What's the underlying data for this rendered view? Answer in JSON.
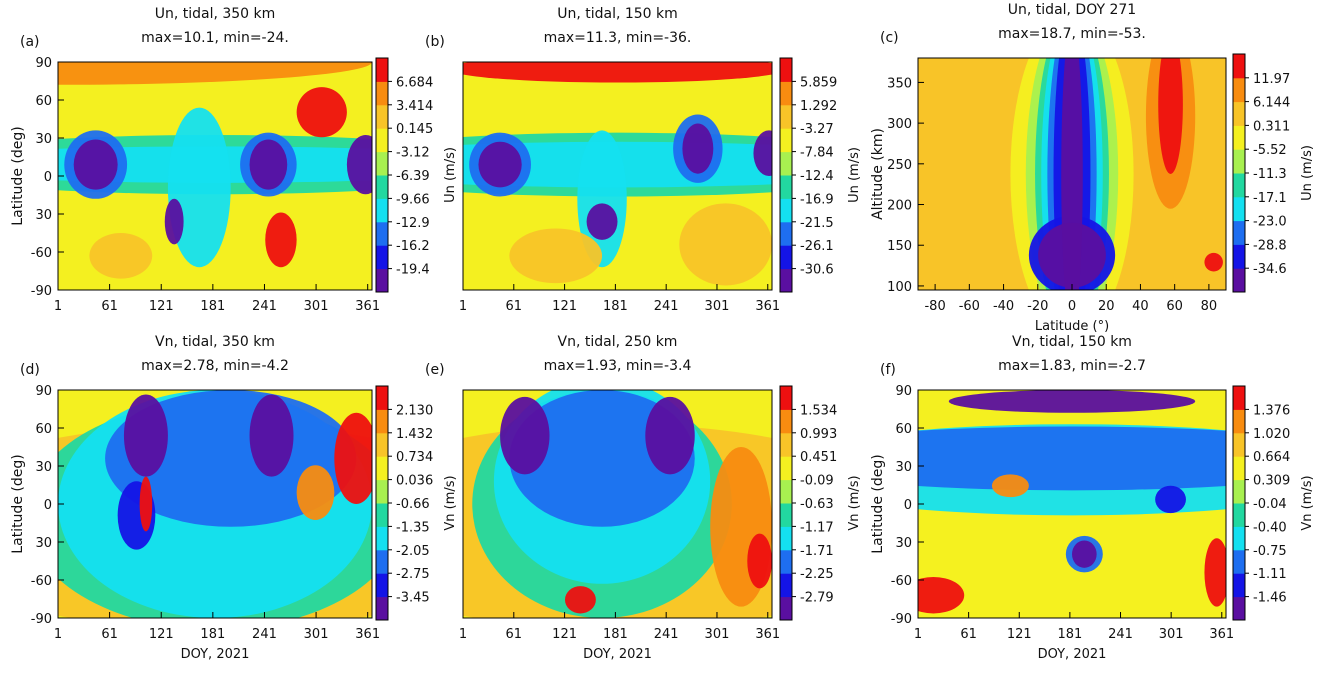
{
  "chart_data": [
    {
      "type": "contour",
      "panel": "(a)",
      "title": "Un, tidal, 350 km",
      "subtitle": "max=10.1,  min=-24.",
      "ylabel": "Latitude (deg)",
      "xlim": [
        1,
        366
      ],
      "xticks": [
        1,
        61,
        121,
        181,
        241,
        301,
        361
      ],
      "ylim": [
        -90,
        90
      ],
      "yticks": [
        -90,
        -60,
        {
          "value": -30,
          "label": "30"
        },
        0,
        30,
        60,
        90
      ],
      "colorbar_label": "Un (m/s)",
      "colorbar_ticks": [
        -19.4,
        -16.2,
        -12.9,
        -9.66,
        -6.39,
        -3.12,
        0.145,
        3.414,
        6.684
      ]
    },
    {
      "type": "contour",
      "panel": "(b)",
      "title": "Un, tidal, 150 km",
      "subtitle": "max=11.3,  min=-36.",
      "xlim": [
        1,
        366
      ],
      "xticks": [
        1,
        61,
        121,
        181,
        241,
        301,
        361
      ],
      "ylim": [
        -90,
        90
      ],
      "colorbar_label": "Un (m/s)",
      "colorbar_ticks": [
        -30.6,
        -26.1,
        -21.5,
        -16.9,
        -12.4,
        -7.84,
        -3.27,
        1.292,
        5.859
      ]
    },
    {
      "type": "contour",
      "panel": "(c)",
      "title": "Un, tidal, DOY 271",
      "subtitle": "max=18.7,  min=-53.",
      "xlabel": "Latitude (°)",
      "ylabel": "Altitude (km)",
      "xlim": [
        -90,
        90
      ],
      "xticks": [
        -80,
        -60,
        -40,
        -20,
        0,
        20,
        40,
        60,
        80
      ],
      "ylim": [
        95,
        380
      ],
      "yticks": [
        100,
        150,
        200,
        250,
        300,
        350
      ],
      "colorbar_label": "Un (m/s)",
      "colorbar_ticks": [
        -34.6,
        -28.8,
        {
          "value": -23,
          "label": "-23.0"
        },
        -17.1,
        -11.3,
        -5.52,
        0.311,
        6.144,
        11.97
      ]
    },
    {
      "type": "contour",
      "panel": "(d)",
      "title": "Vn, tidal, 350 km",
      "subtitle": "max=2.78,  min=-4.2",
      "xlabel": "DOY, 2021",
      "ylabel": "Latitude (deg)",
      "xlim": [
        1,
        366
      ],
      "xticks": [
        1,
        61,
        121,
        181,
        241,
        301,
        361
      ],
      "ylim": [
        -90,
        90
      ],
      "yticks": [
        -90,
        -60,
        {
          "value": -30,
          "label": "30"
        },
        0,
        30,
        60,
        90
      ],
      "colorbar_label": "Vn (m/s)",
      "colorbar_ticks": [
        -3.45,
        -2.75,
        -2.05,
        -1.35,
        -0.66,
        0.036,
        0.734,
        1.432,
        {
          "value": 2.13,
          "label": "2.130"
        }
      ]
    },
    {
      "type": "contour",
      "panel": "(e)",
      "title": "Vn, tidal, 250 km",
      "subtitle": "max=1.93,  min=-3.4",
      "xlabel": "DOY, 2021",
      "xlim": [
        1,
        366
      ],
      "xticks": [
        1,
        61,
        121,
        181,
        241,
        301,
        361
      ],
      "ylim": [
        -90,
        90
      ],
      "colorbar_label": "Vn (m/s)",
      "colorbar_ticks": [
        -2.79,
        -2.25,
        -1.71,
        -1.17,
        -0.63,
        -0.09,
        0.451,
        0.993,
        1.534
      ]
    },
    {
      "type": "contour",
      "panel": "(f)",
      "title": "Vn, tidal, 150 km",
      "subtitle": "max=1.83,  min=-2.7",
      "xlabel": "DOY, 2021",
      "ylabel": "Latitude (deg)",
      "xlim": [
        1,
        366
      ],
      "xticks": [
        1,
        61,
        121,
        181,
        241,
        301,
        361
      ],
      "ylim": [
        -90,
        90
      ],
      "yticks": [
        -90,
        -60,
        {
          "value": -30,
          "label": "30"
        },
        0,
        30,
        60,
        90
      ],
      "colorbar_label": "Vn (m/s)",
      "colorbar_ticks": [
        -1.46,
        -1.11,
        -0.75,
        {
          "value": -0.4,
          "label": "-0.40"
        },
        -0.04,
        0.309,
        0.664,
        {
          "value": 1.02,
          "label": "1.020"
        },
        1.376
      ]
    }
  ],
  "colors": [
    "#5a0fa0",
    "#1414e6",
    "#1e6ef0",
    "#14e0f0",
    "#22d8a0",
    "#a8f050",
    "#f4f020",
    "#f8c428",
    "#f88c10",
    "#ee1010"
  ]
}
